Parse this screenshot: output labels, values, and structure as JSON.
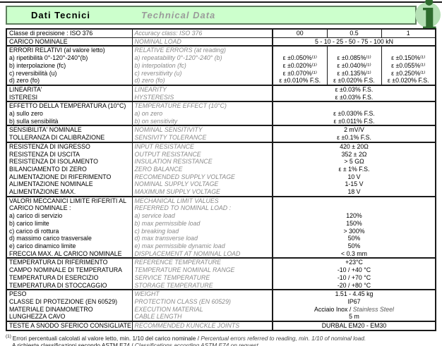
{
  "header": {
    "title_it": "Dati Tecnici",
    "title_en": "Technical Data",
    "info_glyph": "i"
  },
  "colors": {
    "header_bg": "#ccffcc",
    "header_border": "#5d7d5d",
    "info_circle": "#b5e0b5",
    "info_letter": "#2e6b2e",
    "english_text_gray": "#8a8a8a"
  },
  "table": {
    "groups": [
      {
        "mode": "cols",
        "rows": [
          {
            "it": "Classe di precisione : ISO 376",
            "en": "Accuracy class: ISO 376",
            "cols": [
              "00",
              "0.5",
              "1"
            ]
          }
        ]
      },
      {
        "mode": "span",
        "thin": true,
        "rows": [
          {
            "it": "CARICO NOMINALE",
            "en": "NOMINAL LOAD",
            "val": "5 - 10 - 25 - 50 - 75 - 100 kN"
          }
        ]
      },
      {
        "mode": "cols",
        "rows": [
          {
            "it": "ERRORI RELATIVI (al valore letto)",
            "en": "RELATIVE ERRORS (at reading)",
            "cols": [
              "",
              "",
              ""
            ]
          },
          {
            "it": "a) ripetibilità 0°-120°-240°(b)",
            "en": "a) repeatability 0°-120°-240° (b)",
            "cols": [
              "ε ±0.050%⁽¹⁾",
              "ε ±0.085%⁽¹⁾",
              "ε ±0.150%⁽¹⁾"
            ]
          },
          {
            "it": "b) interpolazione (fc)",
            "en": "b) interpolation (fc)",
            "cols": [
              "ε ±0.020%⁽¹⁾",
              "ε ±0.040%⁽¹⁾",
              "ε ±0.055%⁽¹⁾"
            ]
          },
          {
            "it": "c) reversibilità (u)",
            "en": "c) reversitivity (u)",
            "cols": [
              "ε ±0.070%⁽¹⁾",
              "ε ±0.135%⁽¹⁾",
              "ε ±0.250%⁽¹⁾"
            ]
          },
          {
            "it": "d) zero (fo)",
            "en": "d) zero (fo)",
            "cols": [
              "ε ±0.010% F.S.",
              "ε ±0.020% F.S.",
              "ε ±0.020% F.S."
            ]
          }
        ]
      },
      {
        "mode": "span",
        "rows": [
          {
            "it": "LINEARITA'",
            "en": "LINEARITY",
            "val": "ε ±0.03% F.S."
          },
          {
            "it": "ISTERESI",
            "en": "HYSTERESIS",
            "val": "ε ±0.03% F.S."
          }
        ]
      },
      {
        "mode": "span",
        "rows": [
          {
            "it": "EFFETTO DELLA TEMPERATURA (10°C)",
            "en": "TEMPERATURE EFFECT (10°C)",
            "val": ""
          },
          {
            "it": "a) sullo zero",
            "en": "a) on zero",
            "val": "ε ±0.030% F.S."
          },
          {
            "it": "b) sulla sensibilità",
            "en": "b) on sensitivity",
            "val": "ε ±0.011% F.S."
          }
        ]
      },
      {
        "mode": "span",
        "rows": [
          {
            "it": "SENSIBILITA' NOMINALE",
            "en": "NOMINAL SENSITIVITY",
            "val": "2 mV/V"
          },
          {
            "it": "TOLLERANZA DI CALIBRAZIONE",
            "en": "SENSIVITY TOLERANCE",
            "val": "ε ±0.1% F.S."
          }
        ]
      },
      {
        "mode": "span",
        "rows": [
          {
            "it": "RESISTENZA DI INGRESSO",
            "en": "INPUT RESISTANCE",
            "val": "420 ± 20Ω"
          },
          {
            "it": "RESISTENZA DI USCITA",
            "en": "OUTPUT RESISTANCE",
            "val": "352 ± 2Ω"
          },
          {
            "it": "RESISTENZA DI ISOLAMENTO",
            "en": "INSULATION RESISTANCE",
            "val": "> 5 GΩ"
          },
          {
            "it": "BILANCIAMENTO DI ZERO",
            "en": "ZERO BALANCE",
            "val": "ε ± 1% F.S."
          },
          {
            "it": "ALIMENTAZIONE DI RIFERIMENTO",
            "en": "RECOMENDED SUPPLY VOLTAGE",
            "val": "10 V"
          },
          {
            "it": "ALIMENTAZIONE NOMINALE",
            "en": "NOMINAL SUPPLY VOLTAGE",
            "val": "1-15 V"
          },
          {
            "it": "ALIMENTAZIONE MAX.",
            "en": "MAXIMUM SUPPLY VOLTAGE",
            "val": "18 V"
          }
        ]
      },
      {
        "mode": "span",
        "rows": [
          {
            "it": "VALORI MECCANICI LIMITE RIFERITI AL",
            "en": "MECHANICAL LIMIT VALUES",
            "val": ""
          },
          {
            "it": "CARICO NOMINALE :",
            "en": "REFERRED TO NOMINAL LOAD :",
            "val": ""
          },
          {
            "it": "a) carico di servizio",
            "en": "a) service load",
            "val": "120%"
          },
          {
            "it": "b) carico limite",
            "en": "b) max permissible load",
            "val": "150%"
          },
          {
            "it": "c) carico di rottura",
            "en": "c) breaking load",
            "val": "> 300%"
          },
          {
            "it": "d) massimo carico trasversale",
            "en": "d) max transverse load",
            "val": "50%"
          },
          {
            "it": "e) carico dinamico  limite",
            "en": "e) max permissible dynamic load",
            "val": "50%"
          },
          {
            "it": "FRECCIA MAX. AL CARICO NOMINALE",
            "en": "DISPLACEMENT AT NOMINAL LOAD",
            "val": "< 0.3 mm"
          }
        ]
      },
      {
        "mode": "span",
        "rows": [
          {
            "it": "TEMPERATURA DI RIFERIMENTO",
            "en": "REFERENCE TEMPERATURE",
            "val": "+23°C"
          },
          {
            "it": "CAMPO NOMINALE DI TEMPERATURA",
            "en": "TEMPERATURE NOMINAL RANGE",
            "val": "-10 / +40 °C"
          },
          {
            "it": "TEMPERATURA DI ESERCIZIO",
            "en": "SERVICE TEMPERATURE",
            "val": "-10 / +70 °C"
          },
          {
            "it": "TEMPERATURA DI STOCCAGGIO",
            "en": "STORAGE TEMPERATURE",
            "val": "-20 / +80 °C"
          }
        ]
      },
      {
        "mode": "span",
        "rows": [
          {
            "it": "PESO",
            "en": "WEIGHT",
            "val": "1.51 - 4.45 kg"
          },
          {
            "it": "CLASSE DI PROTEZIONE (EN 60529)",
            "en": "PROTECTION CLASS (EN 60529)",
            "val": "IP67"
          },
          {
            "it": "MATERIALE DINAMOMETRO",
            "en": "EXECUTION MATERIAL",
            "val": "Acciaio Inox / ",
            "val2": "Stainless Steel"
          },
          {
            "it": "LUNGHEZZA CAVO",
            "en": "CABLE LENGTH",
            "val": "5 m"
          }
        ]
      },
      {
        "mode": "span",
        "rows": [
          {
            "it": "TESTE A SNODO SFERICO CONSIGLIATE",
            "en": "RECOMMENDED KUNCKLE JOINTS",
            "val": "DURBAL EM20 - EM30"
          }
        ]
      }
    ]
  },
  "footnotes": [
    {
      "marker": "(1)",
      "it": "Errori percentuali calcolati al valore letto, min. 1/10 del carico nominale / ",
      "en": "Percentual errors referred to reading, min. 1/10 of nominal load."
    },
    {
      "marker": "",
      "it": "A richiesta classificazioni secondo ASTM E74 / ",
      "en": "Classifications according ASTM E74 on request."
    }
  ]
}
